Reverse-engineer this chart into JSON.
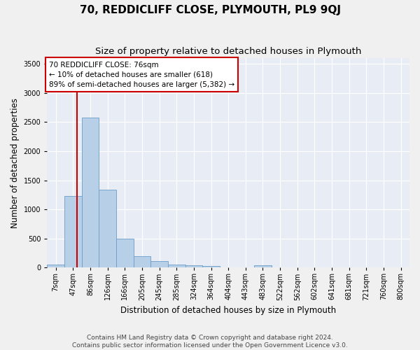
{
  "title": "70, REDDICLIFF CLOSE, PLYMOUTH, PL9 9QJ",
  "subtitle": "Size of property relative to detached houses in Plymouth",
  "xlabel": "Distribution of detached houses by size in Plymouth",
  "ylabel": "Number of detached properties",
  "bin_labels": [
    "7sqm",
    "47sqm",
    "86sqm",
    "126sqm",
    "166sqm",
    "205sqm",
    "245sqm",
    "285sqm",
    "324sqm",
    "364sqm",
    "404sqm",
    "443sqm",
    "483sqm",
    "522sqm",
    "562sqm",
    "602sqm",
    "641sqm",
    "681sqm",
    "721sqm",
    "760sqm",
    "800sqm"
  ],
  "bar_values": [
    55,
    1230,
    2580,
    1340,
    500,
    195,
    105,
    50,
    40,
    30,
    0,
    0,
    35,
    0,
    0,
    0,
    0,
    0,
    0,
    0,
    0
  ],
  "bar_color": "#b8cfe8",
  "bar_edge_color": "#6a9dc8",
  "annotation_line1": "70 REDDICLIFF CLOSE: 76sqm",
  "annotation_line2": "← 10% of detached houses are smaller (618)",
  "annotation_line3": "89% of semi-detached houses are larger (5,382) →",
  "red_line_color": "#cc0000",
  "annotation_box_edge": "#cc0000",
  "ylim": [
    0,
    3600
  ],
  "yticks": [
    0,
    500,
    1000,
    1500,
    2000,
    2500,
    3000,
    3500
  ],
  "footer_line1": "Contains HM Land Registry data © Crown copyright and database right 2024.",
  "footer_line2": "Contains public sector information licensed under the Open Government Licence v3.0.",
  "bg_color": "#f0f0f0",
  "plot_bg_color": "#e8edf5",
  "title_fontsize": 11,
  "subtitle_fontsize": 9.5,
  "axis_label_fontsize": 8.5,
  "tick_fontsize": 7,
  "footer_fontsize": 6.5,
  "annotation_fontsize": 7.5
}
